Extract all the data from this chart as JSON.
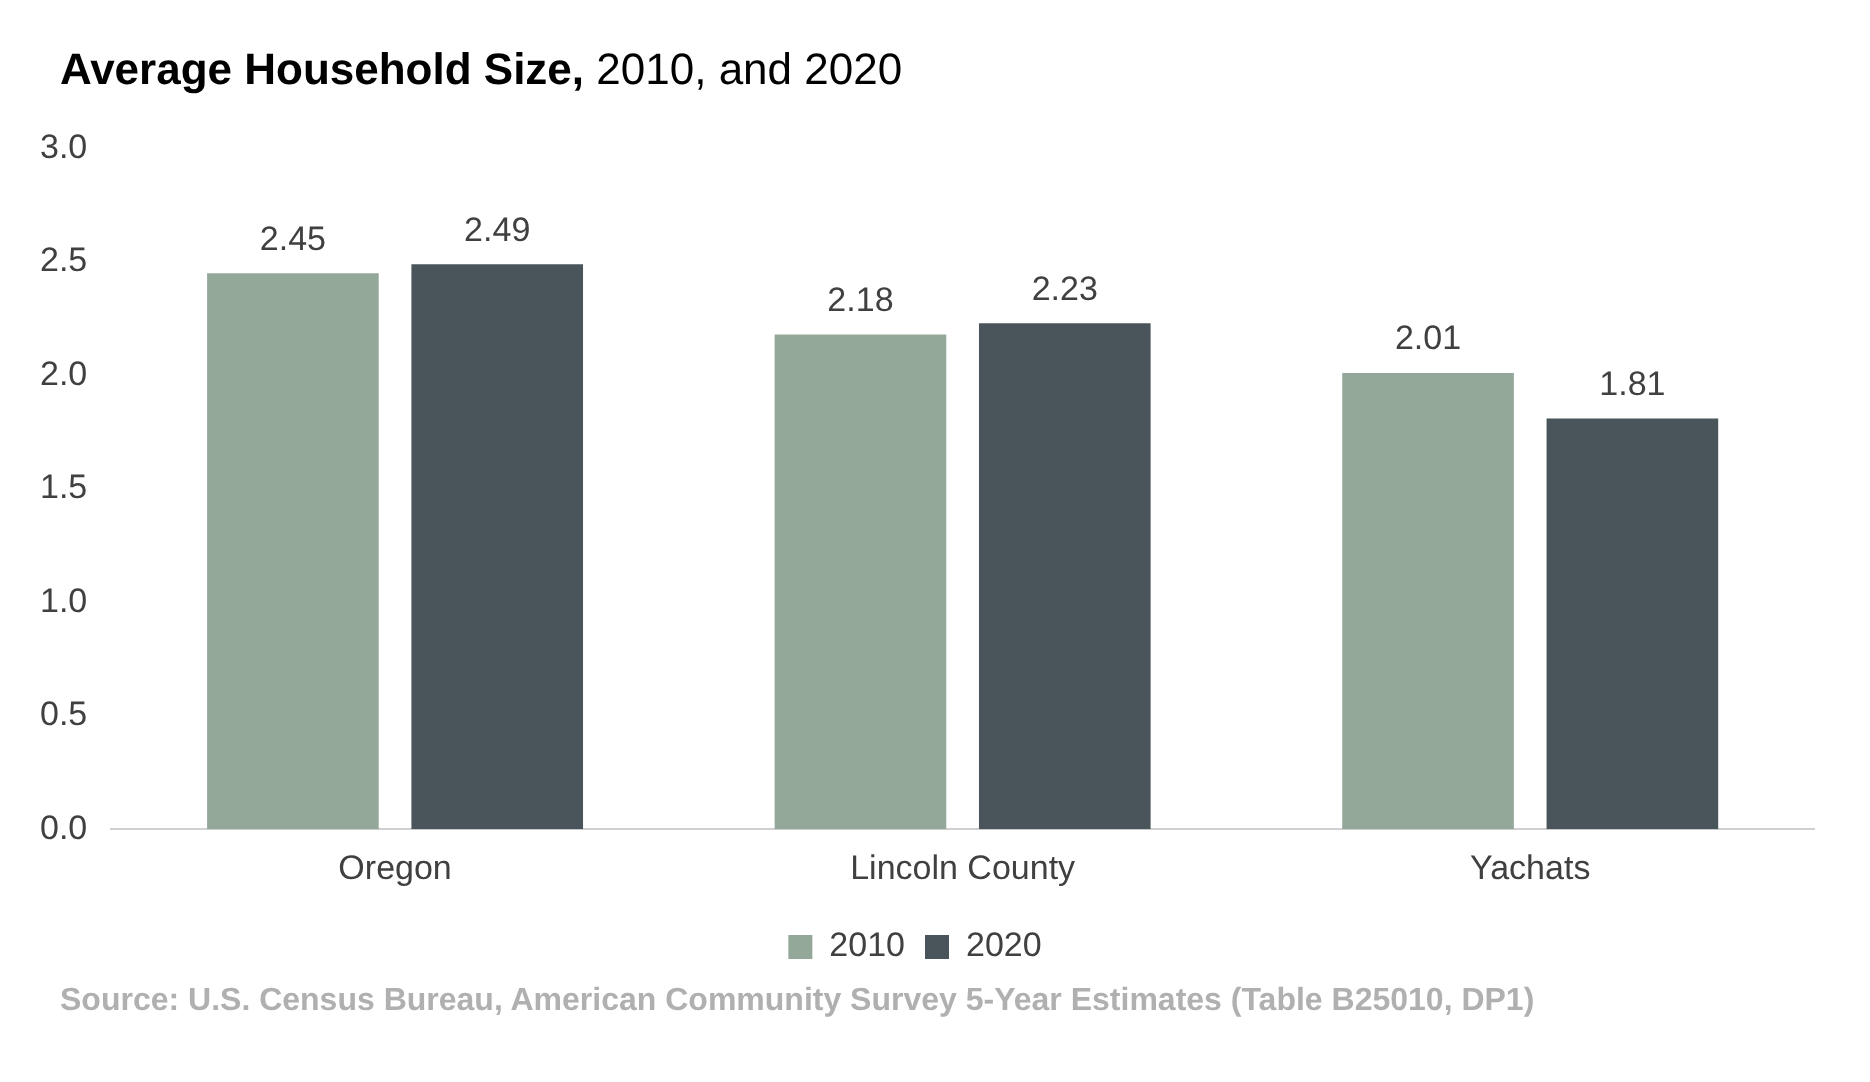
{
  "chart_data": {
    "type": "bar",
    "title": "Average Household Size, 2010, and 2020",
    "categories": [
      "Oregon",
      "Lincoln County",
      "Yachats"
    ],
    "series": [
      {
        "name": "2010",
        "color": "#94a89a",
        "values": [
          2.45,
          2.18,
          2.01
        ]
      },
      {
        "name": "2020",
        "color": "#4a555b",
        "values": [
          2.49,
          2.23,
          1.81
        ]
      }
    ],
    "ylim": [
      0,
      3
    ],
    "yticks": [
      {
        "value": 0,
        "label": "0.0"
      },
      {
        "value": 0.5,
        "label": "0.5"
      },
      {
        "value": 1,
        "label": "1.0"
      },
      {
        "value": 1.5,
        "label": "1.5"
      },
      {
        "value": 2,
        "label": "2.0"
      },
      {
        "value": 2.5,
        "label": "2.5"
      },
      {
        "value": 3,
        "label": "3.0"
      }
    ],
    "grid": false,
    "legend": "bottom",
    "data_labels": true,
    "annotations": [
      "Source: U.S. Census Bureau, American Community Survey 5-Year Estimates (Table B25010, DP1)"
    ]
  }
}
